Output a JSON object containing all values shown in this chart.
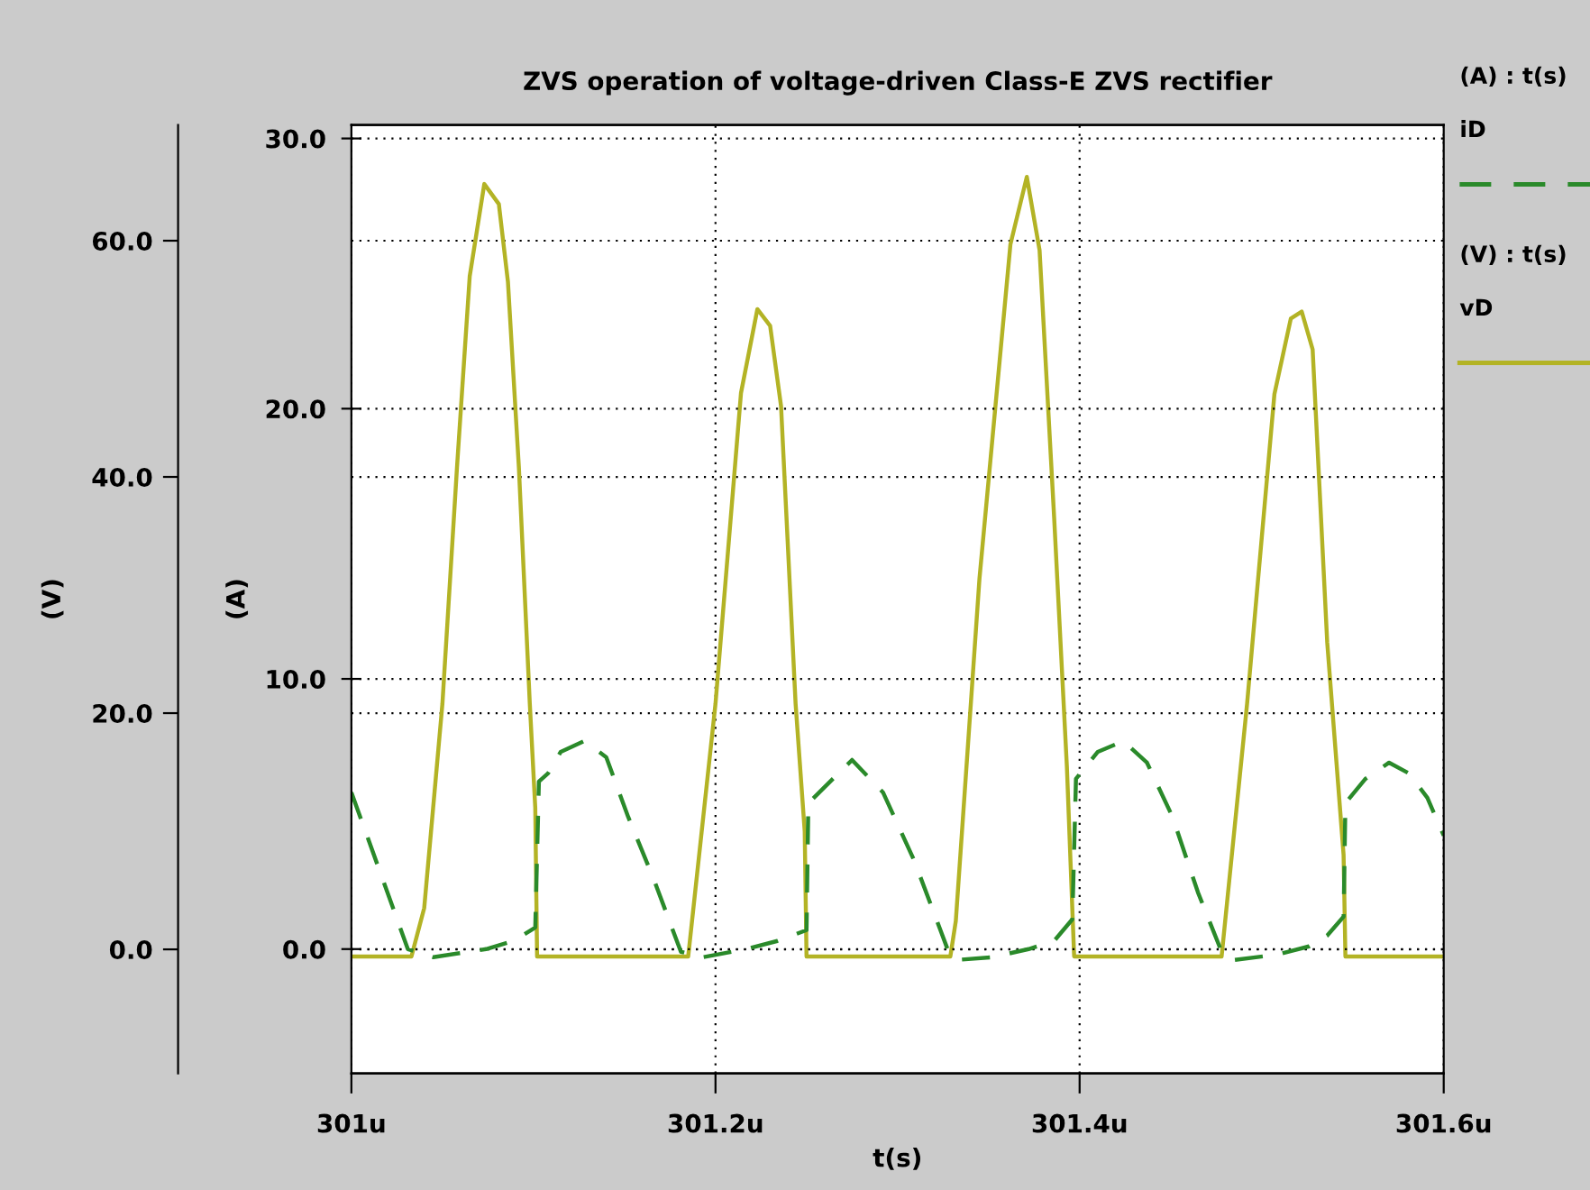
{
  "chart_data": {
    "type": "line",
    "title": "ZVS operation of voltage-driven Class-E ZVS rectifier",
    "xlabel": "t(s)",
    "ylabel": "(V)",
    "y2label": "(A)",
    "xlim": [
      301.0,
      301.6
    ],
    "xticks": [
      {
        "value": 301.0,
        "label": "301u"
      },
      {
        "value": 301.2,
        "label": "301.2u"
      },
      {
        "value": 301.4,
        "label": "301.4u"
      },
      {
        "value": 301.6,
        "label": "301.6u"
      }
    ],
    "y2lim": [
      -4.6,
      30.5
    ],
    "y2ticks": [
      {
        "value": 0,
        "label": "0.0"
      },
      {
        "value": 10,
        "label": "10.0"
      },
      {
        "value": 20,
        "label": "20.0"
      },
      {
        "value": 30,
        "label": "30.0"
      }
    ],
    "ylim": [
      -10.5,
      69.8
    ],
    "yticks": [
      {
        "value": 0,
        "label": "0.0"
      },
      {
        "value": 20,
        "label": "20.0"
      },
      {
        "value": 40,
        "label": "40.0"
      },
      {
        "value": 60,
        "label": "60.0"
      }
    ],
    "grid": true,
    "legend": "right",
    "marker": "none",
    "annotations": [
      "(A) : t(s)",
      "(V) : t(s)"
    ],
    "series": [
      {
        "name": "iD",
        "color": "#2a8a2a",
        "line_style": "dashed",
        "axis": "y2",
        "x": [
          301.0,
          301.031,
          301.045,
          301.074,
          301.089,
          301.101,
          301.103,
          301.108,
          301.115,
          301.128,
          301.14,
          301.152,
          301.166,
          301.181,
          301.193,
          301.217,
          301.234,
          301.246,
          301.25,
          301.251,
          301.275,
          301.292,
          301.309,
          301.323,
          301.328,
          301.333,
          301.352,
          301.372,
          301.386,
          301.396,
          301.398,
          301.41,
          301.424,
          301.437,
          301.451,
          301.465,
          301.478,
          301.485,
          301.509,
          301.526,
          301.536,
          301.545,
          301.546,
          301.557,
          301.57,
          301.581,
          301.591,
          301.6
        ],
        "values": [
          5.8,
          0.0,
          -0.3,
          0.0,
          0.3,
          0.8,
          6.2,
          6.5,
          7.3,
          7.7,
          7.1,
          4.9,
          2.6,
          -0.1,
          -0.3,
          0.0,
          0.3,
          0.6,
          0.7,
          5.4,
          7.0,
          5.8,
          3.3,
          0.8,
          -0.1,
          -0.4,
          -0.3,
          0.0,
          0.3,
          1.1,
          6.3,
          7.3,
          7.7,
          6.9,
          4.9,
          2.1,
          -0.1,
          -0.4,
          -0.2,
          0.1,
          0.5,
          1.2,
          5.4,
          6.3,
          6.9,
          6.5,
          5.6,
          4.2
        ]
      },
      {
        "name": "vD",
        "color": "#b3b325",
        "line_style": "solid",
        "axis": "y",
        "x": [
          301.0,
          301.033,
          301.04,
          301.05,
          301.058,
          301.065,
          301.073,
          301.081,
          301.086,
          301.092,
          301.098,
          301.101,
          301.102,
          301.185,
          301.2,
          301.214,
          301.223,
          301.23,
          301.236,
          301.244,
          301.249,
          301.25,
          301.329,
          301.332,
          301.345,
          301.362,
          301.371,
          301.378,
          301.386,
          301.393,
          301.397,
          301.478,
          301.492,
          301.507,
          301.516,
          301.522,
          301.528,
          301.536,
          301.545,
          301.546,
          301.6
        ],
        "values": [
          -0.6,
          -0.6,
          3.5,
          20.8,
          40.8,
          57.0,
          64.8,
          63.1,
          56.5,
          40.8,
          20.8,
          12.0,
          -0.6,
          -0.6,
          20.8,
          47.1,
          54.2,
          52.8,
          46.0,
          20.8,
          10.0,
          -0.6,
          -0.6,
          2.4,
          31.4,
          59.7,
          65.4,
          59.2,
          36.6,
          15.5,
          -0.6,
          -0.6,
          20.8,
          47.0,
          53.4,
          54.0,
          50.8,
          26.0,
          8.0,
          -0.6,
          -0.6
        ]
      }
    ]
  }
}
